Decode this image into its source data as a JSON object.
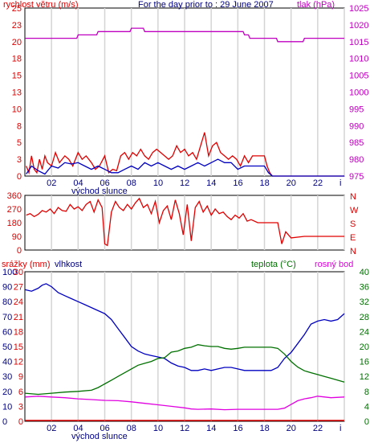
{
  "chart_data": [
    {
      "type": "line",
      "title": "For the day prior to : 29 June 2007",
      "ylabel": "rychlost větru (m/s)",
      "y2label": "tlak (hPa)",
      "xlabel": "",
      "x_ticks": [
        "02",
        "04",
        "06",
        "08",
        "10",
        "12",
        "14",
        "16",
        "18",
        "20",
        "22",
        "i"
      ],
      "x_sublabel": "východ slunce",
      "ylim": [
        0,
        25
      ],
      "y_ticks": [
        "0",
        "3",
        "5",
        "8",
        "10",
        "13",
        "15",
        "18",
        "20",
        "23",
        "25"
      ],
      "y2lim": [
        975,
        1025
      ],
      "y2_ticks": [
        "975",
        "980",
        "985",
        "990",
        "995",
        "1000",
        "1005",
        "1010",
        "1015",
        "1020",
        "1025"
      ],
      "series": [
        {
          "color": "#e00000",
          "axis": "left",
          "x": [
            0.1,
            0.3,
            0.5,
            0.7,
            0.9,
            1.1,
            1.3,
            1.5,
            1.7,
            2.0,
            2.3,
            2.6,
            3.0,
            3.3,
            3.6,
            4.0,
            4.3,
            4.6,
            5.0,
            5.3,
            5.6,
            6.0,
            6.3,
            6.6,
            6.9,
            7.2,
            7.5,
            7.8,
            8.1,
            8.4,
            8.7,
            9.0,
            9.3,
            9.6,
            9.9,
            10.2,
            10.5,
            10.8,
            11.1,
            11.4,
            11.7,
            12.0,
            12.3,
            12.6,
            12.9,
            13.2,
            13.5,
            13.8,
            14.1,
            14.4,
            14.7,
            15.0,
            15.3,
            15.6,
            15.9,
            16.2,
            16.5,
            16.8,
            17.1,
            17.4,
            17.7,
            18.0,
            18.2,
            18.4,
            18.6,
            19.0,
            20.0,
            21.0,
            22.0,
            23.0,
            24.0
          ],
          "y": [
            1.5,
            0.5,
            3.0,
            1.0,
            0.5,
            2.5,
            1.0,
            3.0,
            2.0,
            1.5,
            3.5,
            2.0,
            3.0,
            2.5,
            1.5,
            3.5,
            2.5,
            3.0,
            2.0,
            1.0,
            1.5,
            3.0,
            0.5,
            1.0,
            0.8,
            3.0,
            3.5,
            2.5,
            3.5,
            3.0,
            4.0,
            3.0,
            2.5,
            3.5,
            4.0,
            3.5,
            3.0,
            2.5,
            3.0,
            4.5,
            3.5,
            4.0,
            3.0,
            3.5,
            2.5,
            4.5,
            6.5,
            3.0,
            4.5,
            5.0,
            3.5,
            3.0,
            2.5,
            3.0,
            2.5,
            1.5,
            3.0,
            2.0,
            3.0,
            3.0,
            3.0,
            3.0,
            1.5,
            0.5,
            0,
            0,
            0,
            0,
            0,
            0,
            0
          ]
        },
        {
          "color": "#0000c0",
          "axis": "left",
          "x": [
            0.1,
            0.5,
            1.0,
            1.5,
            2.0,
            2.5,
            3.0,
            3.5,
            4.0,
            4.5,
            5.0,
            5.5,
            6.0,
            6.5,
            7.0,
            7.5,
            8.0,
            8.5,
            9.0,
            9.5,
            10.0,
            10.5,
            11.0,
            11.5,
            12.0,
            12.5,
            13.0,
            13.5,
            14.0,
            14.5,
            15.0,
            15.5,
            16.0,
            16.5,
            17.0,
            17.5,
            18.0,
            18.3,
            18.6,
            19.0,
            20.0,
            21.0,
            22.0,
            23.0,
            24.0
          ],
          "y": [
            0.3,
            1.5,
            0.8,
            0.3,
            1.5,
            1.2,
            2.0,
            1.8,
            2.0,
            1.5,
            1.0,
            1.5,
            1.0,
            0.5,
            0.5,
            1.0,
            1.5,
            1.0,
            2.0,
            1.5,
            2.0,
            1.5,
            1.0,
            1.5,
            1.0,
            1.5,
            2.0,
            1.5,
            2.0,
            2.5,
            2.0,
            2.0,
            1.0,
            1.5,
            1.5,
            1.5,
            1.5,
            0.5,
            0,
            0,
            0,
            0,
            0,
            0,
            0
          ]
        },
        {
          "color": "#c000c0",
          "axis": "right",
          "x": [
            0,
            3.9,
            4.0,
            5.4,
            5.5,
            7.9,
            8.0,
            8.9,
            9.0,
            16.4,
            16.5,
            16.8,
            16.9,
            18.9,
            19.0,
            20.9,
            21.0,
            24.0
          ],
          "y": [
            1016,
            1016,
            1017,
            1017,
            1018,
            1018,
            1019,
            1019,
            1018,
            1018,
            1017,
            1017,
            1016,
            1016,
            1015,
            1015,
            1016,
            1016
          ]
        }
      ]
    },
    {
      "type": "scatter",
      "title": "",
      "ylabel": "",
      "ylim": [
        0,
        360
      ],
      "y_ticks": [
        "0",
        "90",
        "180",
        "270",
        "360"
      ],
      "compass": [
        "N",
        "W",
        "S",
        "E",
        "N"
      ],
      "series": [
        {
          "color": "#e00000",
          "x": [
            0.1,
            0.4,
            0.7,
            1.0,
            1.3,
            1.6,
            1.9,
            2.2,
            2.5,
            2.8,
            3.1,
            3.4,
            3.7,
            4.0,
            4.3,
            4.6,
            4.9,
            5.2,
            5.5,
            5.8,
            6.0,
            6.2,
            6.5,
            6.8,
            7.1,
            7.4,
            7.7,
            8.0,
            8.3,
            8.6,
            8.9,
            9.2,
            9.5,
            9.8,
            10.1,
            10.4,
            10.7,
            11.0,
            11.3,
            11.6,
            11.9,
            12.2,
            12.5,
            12.8,
            13.1,
            13.4,
            13.7,
            14.0,
            14.3,
            14.6,
            14.9,
            15.2,
            15.5,
            15.8,
            16.1,
            16.4,
            16.7,
            17.0,
            17.5,
            18.0,
            18.5,
            19.0,
            19.3,
            19.6,
            20.0,
            21.0,
            22.0,
            23.0,
            24.0
          ],
          "y": [
            230,
            240,
            220,
            235,
            260,
            250,
            270,
            240,
            280,
            260,
            255,
            300,
            270,
            285,
            260,
            300,
            320,
            250,
            330,
            280,
            40,
            30,
            250,
            320,
            280,
            260,
            300,
            270,
            310,
            340,
            280,
            300,
            240,
            320,
            180,
            260,
            290,
            200,
            330,
            240,
            100,
            300,
            60,
            280,
            320,
            250,
            290,
            230,
            270,
            240,
            250,
            220,
            200,
            230,
            210,
            240,
            190,
            200,
            180,
            180,
            180,
            180,
            40,
            120,
            80,
            90,
            90,
            90,
            90
          ]
        }
      ]
    },
    {
      "type": "line",
      "title": "",
      "labels_top": [
        "srážky (mm)",
        "vlhkost",
        "teplota (°C)",
        "rosný bod"
      ],
      "x_ticks": [
        "02",
        "04",
        "06",
        "08",
        "10",
        "12",
        "14",
        "16",
        "18",
        "20",
        "22",
        "i"
      ],
      "x_sublabel": "východ slunce",
      "y_left_ticks": [
        "0",
        "10",
        "20",
        "30",
        "40",
        "50",
        "60",
        "70",
        "80",
        "90",
        "100"
      ],
      "y_left_inner_ticks": [
        "0",
        "3",
        "6",
        "9",
        "12",
        "15",
        "18",
        "21",
        "24",
        "27",
        "30"
      ],
      "y_right_ticks": [
        "0",
        "4",
        "8",
        "12",
        "16",
        "20",
        "24",
        "28",
        "32",
        "36",
        "40"
      ],
      "ylim": [
        0,
        100
      ],
      "y2lim": [
        0,
        40
      ],
      "series": [
        {
          "color": "#0000c0",
          "axis": "left",
          "x": [
            0,
            0.5,
            1.0,
            1.3,
            1.6,
            2.0,
            2.5,
            3.0,
            3.5,
            4.0,
            4.5,
            5.0,
            5.5,
            6.0,
            6.5,
            7.0,
            7.5,
            8.0,
            8.5,
            9.0,
            9.5,
            10.0,
            10.5,
            11.0,
            11.5,
            12.0,
            12.5,
            13.0,
            13.5,
            14.0,
            14.5,
            15.0,
            15.5,
            16.0,
            16.5,
            17.0,
            17.5,
            18.0,
            18.5,
            19.0,
            19.5,
            20.0,
            20.5,
            21.0,
            21.5,
            22.0,
            22.5,
            23.0,
            23.5,
            24.0
          ],
          "y": [
            88,
            87,
            89,
            91,
            92,
            90,
            86,
            84,
            82,
            80,
            78,
            76,
            74,
            72,
            68,
            62,
            56,
            50,
            47,
            45,
            44,
            43,
            42,
            39,
            37,
            36,
            34,
            34,
            35,
            34,
            35,
            36,
            36,
            35,
            34,
            34,
            34,
            34,
            34,
            36,
            42,
            46,
            52,
            58,
            65,
            67,
            68,
            67,
            68,
            72
          ]
        },
        {
          "color": "#007000",
          "axis": "right",
          "x": [
            0,
            1.0,
            2.0,
            3.0,
            4.0,
            5.0,
            5.5,
            6.0,
            6.5,
            7.0,
            7.5,
            8.0,
            8.5,
            9.0,
            9.5,
            10.0,
            10.5,
            11.0,
            11.5,
            12.0,
            12.5,
            13.0,
            13.5,
            14.0,
            14.5,
            15.0,
            15.5,
            16.0,
            16.5,
            17.0,
            17.5,
            18.0,
            18.5,
            19.0,
            19.5,
            20.0,
            20.5,
            21.0,
            21.5,
            22.0,
            22.5,
            23.0,
            23.5,
            24.0
          ],
          "y": [
            7.5,
            7.2,
            7.5,
            7.8,
            8.0,
            8.3,
            9.0,
            10.0,
            11.0,
            12.0,
            13.0,
            14.0,
            15.0,
            15.5,
            16.0,
            16.8,
            17.0,
            18.5,
            18.8,
            19.5,
            19.8,
            20.5,
            20.2,
            20.0,
            20.0,
            19.5,
            19.3,
            19.5,
            19.8,
            19.8,
            19.8,
            19.8,
            19.8,
            19.5,
            18.0,
            16.0,
            14.5,
            13.5,
            13.0,
            12.5,
            12.0,
            11.5,
            11.0,
            10.5
          ]
        },
        {
          "color": "#e000e0",
          "axis": "right",
          "x": [
            0,
            1.0,
            2.0,
            3.0,
            4.0,
            5.0,
            6.0,
            7.0,
            8.0,
            9.0,
            10.0,
            11.0,
            12.0,
            12.5,
            13.0,
            14.0,
            15.0,
            16.0,
            17.0,
            18.0,
            18.5,
            19.0,
            19.5,
            20.0,
            20.5,
            21.0,
            21.5,
            22.0,
            23.0,
            24.0
          ],
          "y": [
            6.5,
            6.7,
            6.5,
            6.3,
            6.0,
            5.8,
            5.6,
            5.5,
            5.2,
            4.8,
            4.4,
            4.0,
            3.6,
            3.3,
            3.2,
            3.3,
            3.1,
            3.2,
            3.2,
            3.2,
            3.2,
            3.2,
            3.5,
            4.5,
            5.5,
            6.0,
            6.3,
            6.7,
            6.3,
            6.5
          ]
        }
      ]
    }
  ]
}
